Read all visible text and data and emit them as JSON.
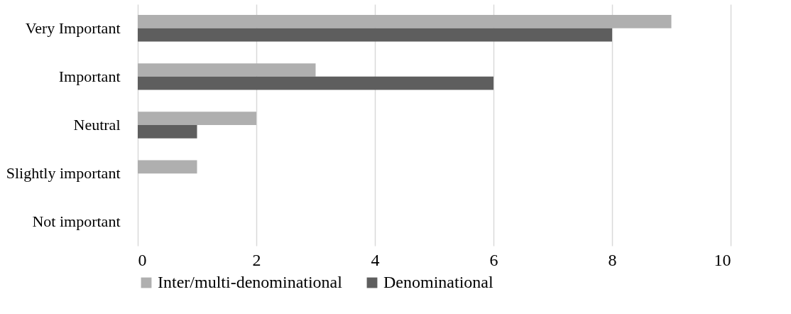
{
  "chart_data": {
    "type": "bar",
    "orientation": "horizontal",
    "categories": [
      "Very Important",
      "Important",
      "Neutral",
      "Slightly important",
      "Not important"
    ],
    "series": [
      {
        "name": "Inter/multi-denominational",
        "color": "#afafaf",
        "values": [
          9,
          3,
          2,
          1,
          0
        ]
      },
      {
        "name": "Denominational",
        "color": "#5e5e5e",
        "values": [
          8,
          6,
          1,
          0,
          0
        ]
      }
    ],
    "xlim": [
      0,
      10
    ],
    "xticks": [
      0,
      2,
      4,
      6,
      8,
      10
    ],
    "grid": "x",
    "legend": "bottom"
  }
}
